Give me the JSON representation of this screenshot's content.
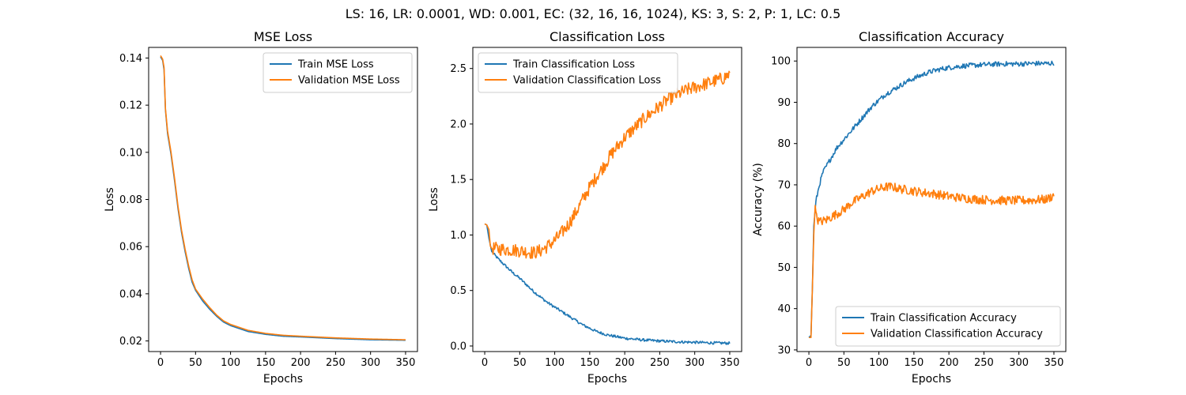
{
  "figure": {
    "suptitle": "LS: 16, LR: 0.0001, WD: 0.001, EC: (32, 16, 16, 1024), KS: 3, S: 2, P: 1, LC: 0.5"
  },
  "colors": {
    "train": "#1f77b4",
    "validation": "#ff7f0e"
  },
  "chart_data": [
    {
      "type": "line",
      "title": "MSE Loss",
      "xlabel": "Epochs",
      "ylabel": "Loss",
      "xlim": [
        -17,
        367
      ],
      "ylim": [
        0.0155,
        0.1445
      ],
      "xticks": [
        0,
        50,
        100,
        150,
        200,
        250,
        300,
        350
      ],
      "yticks": [
        0.02,
        0.04,
        0.06,
        0.08,
        0.1,
        0.12,
        0.14
      ],
      "ytick_labels": [
        "0.02",
        "0.04",
        "0.06",
        "0.08",
        "0.10",
        "0.12",
        "0.14"
      ],
      "legend_position": "top-right",
      "grid": false,
      "series": [
        {
          "name": "Train MSE Loss",
          "color_key": "train",
          "points": [
            [
              0,
              0.1405
            ],
            [
              3,
              0.139
            ],
            [
              5,
              0.135
            ],
            [
              7,
              0.118
            ],
            [
              10,
              0.108
            ],
            [
              15,
              0.099
            ],
            [
              20,
              0.088
            ],
            [
              25,
              0.076
            ],
            [
              30,
              0.066
            ],
            [
              35,
              0.058
            ],
            [
              40,
              0.051
            ],
            [
              45,
              0.045
            ],
            [
              50,
              0.0415
            ],
            [
              60,
              0.037
            ],
            [
              70,
              0.0335
            ],
            [
              80,
              0.0305
            ],
            [
              90,
              0.028
            ],
            [
              100,
              0.0265
            ],
            [
              125,
              0.024
            ],
            [
              150,
              0.0228
            ],
            [
              175,
              0.022
            ],
            [
              200,
              0.0217
            ],
            [
              250,
              0.021
            ],
            [
              300,
              0.0205
            ],
            [
              350,
              0.0203
            ]
          ]
        },
        {
          "name": "Validation MSE Loss",
          "color_key": "validation",
          "points": [
            [
              0,
              0.141
            ],
            [
              3,
              0.1395
            ],
            [
              5,
              0.136
            ],
            [
              7,
              0.1185
            ],
            [
              10,
              0.109
            ],
            [
              15,
              0.1
            ],
            [
              20,
              0.089
            ],
            [
              25,
              0.077
            ],
            [
              30,
              0.067
            ],
            [
              35,
              0.059
            ],
            [
              40,
              0.052
            ],
            [
              45,
              0.046
            ],
            [
              50,
              0.042
            ],
            [
              60,
              0.0378
            ],
            [
              70,
              0.0342
            ],
            [
              80,
              0.031
            ],
            [
              90,
              0.0285
            ],
            [
              100,
              0.027
            ],
            [
              125,
              0.0245
            ],
            [
              150,
              0.0232
            ],
            [
              175,
              0.0224
            ],
            [
              200,
              0.022
            ],
            [
              250,
              0.0213
            ],
            [
              300,
              0.0208
            ],
            [
              350,
              0.0205
            ]
          ]
        }
      ]
    },
    {
      "type": "line",
      "title": "Classification Loss",
      "xlabel": "Epochs",
      "ylabel": "Loss",
      "xlim": [
        -17,
        367
      ],
      "ylim": [
        -0.05,
        2.69
      ],
      "xticks": [
        0,
        50,
        100,
        150,
        200,
        250,
        300,
        350
      ],
      "yticks": [
        0.0,
        0.5,
        1.0,
        1.5,
        2.0,
        2.5
      ],
      "ytick_labels": [
        "0.0",
        "0.5",
        "1.0",
        "1.5",
        "2.0",
        "2.5"
      ],
      "legend_position": "top-left",
      "grid": false,
      "series": [
        {
          "name": "Train Classification Loss",
          "color_key": "train",
          "points": [
            [
              0,
              1.1
            ],
            [
              3,
              1.09
            ],
            [
              6,
              0.97
            ],
            [
              10,
              0.85
            ],
            [
              20,
              0.78
            ],
            [
              30,
              0.72
            ],
            [
              40,
              0.66
            ],
            [
              50,
              0.61
            ],
            [
              60,
              0.55
            ],
            [
              70,
              0.49
            ],
            [
              80,
              0.44
            ],
            [
              90,
              0.39
            ],
            [
              100,
              0.35
            ],
            [
              110,
              0.31
            ],
            [
              120,
              0.27
            ],
            [
              130,
              0.23
            ],
            [
              140,
              0.19
            ],
            [
              150,
              0.16
            ],
            [
              160,
              0.13
            ],
            [
              175,
              0.1
            ],
            [
              200,
              0.07
            ],
            [
              225,
              0.055
            ],
            [
              250,
              0.045
            ],
            [
              275,
              0.038
            ],
            [
              300,
              0.033
            ],
            [
              325,
              0.028
            ],
            [
              350,
              0.025
            ]
          ],
          "noise": 0.012
        },
        {
          "name": "Validation Classification Loss",
          "color_key": "validation",
          "points": [
            [
              0,
              1.1
            ],
            [
              3,
              1.09
            ],
            [
              6,
              1.05
            ],
            [
              8,
              0.9
            ],
            [
              10,
              0.88
            ],
            [
              30,
              0.87
            ],
            [
              50,
              0.86
            ],
            [
              70,
              0.84
            ],
            [
              80,
              0.86
            ],
            [
              90,
              0.9
            ],
            [
              100,
              0.95
            ],
            [
              110,
              1.02
            ],
            [
              120,
              1.1
            ],
            [
              130,
              1.2
            ],
            [
              140,
              1.32
            ],
            [
              150,
              1.43
            ],
            [
              160,
              1.53
            ],
            [
              170,
              1.62
            ],
            [
              180,
              1.72
            ],
            [
              190,
              1.8
            ],
            [
              200,
              1.88
            ],
            [
              210,
              1.94
            ],
            [
              220,
              2.0
            ],
            [
              230,
              2.06
            ],
            [
              240,
              2.11
            ],
            [
              250,
              2.16
            ],
            [
              260,
              2.21
            ],
            [
              270,
              2.25
            ],
            [
              280,
              2.28
            ],
            [
              290,
              2.31
            ],
            [
              300,
              2.33
            ],
            [
              310,
              2.35
            ],
            [
              320,
              2.37
            ],
            [
              330,
              2.39
            ],
            [
              340,
              2.41
            ],
            [
              350,
              2.45
            ]
          ],
          "noise": 0.06
        }
      ]
    },
    {
      "type": "line",
      "title": "Classification Accuracy",
      "xlabel": "Epochs",
      "ylabel": "Accuracy (%)",
      "xlim": [
        -17,
        367
      ],
      "ylim": [
        29.6,
        103.3
      ],
      "xticks": [
        0,
        50,
        100,
        150,
        200,
        250,
        300,
        350
      ],
      "yticks": [
        30,
        40,
        50,
        60,
        70,
        80,
        90,
        100
      ],
      "ytick_labels": [
        "30",
        "40",
        "50",
        "60",
        "70",
        "80",
        "90",
        "100"
      ],
      "legend_position": "bottom-right",
      "grid": false,
      "series": [
        {
          "name": "Train Classification Accuracy",
          "color_key": "train",
          "points": [
            [
              0,
              33
            ],
            [
              3,
              33.5
            ],
            [
              5,
              45
            ],
            [
              7,
              60
            ],
            [
              10,
              66
            ],
            [
              15,
              70
            ],
            [
              20,
              73
            ],
            [
              30,
              76
            ],
            [
              40,
              79
            ],
            [
              50,
              81
            ],
            [
              60,
              83
            ],
            [
              70,
              85
            ],
            [
              80,
              87
            ],
            [
              90,
              89
            ],
            [
              100,
              90.5
            ],
            [
              110,
              92
            ],
            [
              120,
              93
            ],
            [
              130,
              94
            ],
            [
              140,
              95
            ],
            [
              150,
              95.8
            ],
            [
              160,
              96.5
            ],
            [
              170,
              97.2
            ],
            [
              180,
              97.7
            ],
            [
              190,
              98.1
            ],
            [
              200,
              98.4
            ],
            [
              220,
              98.8
            ],
            [
              240,
              99
            ],
            [
              260,
              99.2
            ],
            [
              280,
              99.3
            ],
            [
              300,
              99.3
            ],
            [
              320,
              99.4
            ],
            [
              340,
              99.4
            ],
            [
              350,
              99.5
            ]
          ],
          "noise": 0.6
        },
        {
          "name": "Validation Classification Accuracy",
          "color_key": "validation",
          "points": [
            [
              0,
              33
            ],
            [
              3,
              33
            ],
            [
              5,
              45
            ],
            [
              7,
              58
            ],
            [
              9,
              65
            ],
            [
              11,
              62
            ],
            [
              15,
              61
            ],
            [
              25,
              61.5
            ],
            [
              35,
              62.5
            ],
            [
              50,
              64
            ],
            [
              60,
              65.5
            ],
            [
              70,
              66.5
            ],
            [
              80,
              67.5
            ],
            [
              90,
              68.5
            ],
            [
              100,
              69
            ],
            [
              110,
              69.5
            ],
            [
              120,
              69.5
            ],
            [
              130,
              69
            ],
            [
              140,
              68.8
            ],
            [
              150,
              68.5
            ],
            [
              160,
              68.2
            ],
            [
              170,
              68
            ],
            [
              180,
              67.8
            ],
            [
              190,
              67.5
            ],
            [
              200,
              67.2
            ],
            [
              220,
              66.8
            ],
            [
              240,
              66.5
            ],
            [
              260,
              66.3
            ],
            [
              280,
              66.2
            ],
            [
              300,
              66.2
            ],
            [
              320,
              66.3
            ],
            [
              340,
              66.5
            ],
            [
              350,
              67.5
            ]
          ],
          "noise": 1.1
        }
      ]
    }
  ]
}
